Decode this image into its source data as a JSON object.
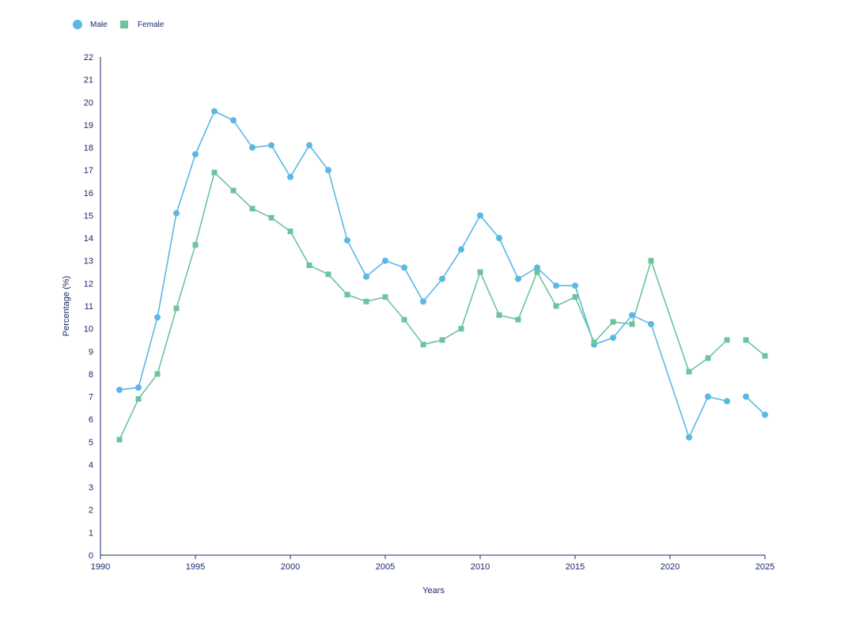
{
  "chart_data": {
    "type": "line",
    "xlabel": "Years",
    "ylabel": "Percentage (%)",
    "xlim": [
      1990,
      2025
    ],
    "ylim": [
      0,
      22
    ],
    "x_ticks": [
      1990,
      1995,
      2000,
      2005,
      2010,
      2015,
      2020,
      2025
    ],
    "y_ticks": [
      0,
      1,
      2,
      3,
      4,
      5,
      6,
      7,
      8,
      9,
      10,
      11,
      12,
      13,
      14,
      15,
      16,
      17,
      18,
      19,
      20,
      21,
      22
    ],
    "grid": false,
    "legend_position": "top-left",
    "series": [
      {
        "name": "Male",
        "color": "#5bb8e4",
        "marker": "circle",
        "points": [
          [
            1991,
            7.3
          ],
          [
            1992,
            7.4
          ],
          [
            1993,
            10.5
          ],
          [
            1994,
            15.1
          ],
          [
            1995,
            17.7
          ],
          [
            1996,
            19.6
          ],
          [
            1997,
            19.2
          ],
          [
            1998,
            18.0
          ],
          [
            1999,
            18.1
          ],
          [
            2000,
            16.7
          ],
          [
            2001,
            18.1
          ],
          [
            2002,
            17.0
          ],
          [
            2003,
            13.9
          ],
          [
            2004,
            12.3
          ],
          [
            2005,
            13.0
          ],
          [
            2006,
            12.7
          ],
          [
            2007,
            11.2
          ],
          [
            2008,
            12.2
          ],
          [
            2009,
            13.5
          ],
          [
            2010,
            15.0
          ],
          [
            2011,
            14.0
          ],
          [
            2012,
            12.2
          ],
          [
            2013,
            12.7
          ],
          [
            2014,
            11.9
          ],
          [
            2015,
            11.9
          ],
          [
            2016,
            9.3
          ],
          [
            2017,
            9.6
          ],
          [
            2018,
            10.6
          ],
          [
            2019,
            10.2
          ],
          [
            2021,
            5.2
          ],
          [
            2022,
            7.0
          ],
          [
            2023,
            6.8
          ],
          [
            2024,
            7.0
          ],
          [
            2025,
            6.2
          ]
        ],
        "segments": [
          [
            1991,
            2023
          ],
          [
            2024,
            2025
          ]
        ]
      },
      {
        "name": "Female",
        "color": "#6cc49c",
        "marker": "square",
        "points": [
          [
            1991,
            5.1
          ],
          [
            1992,
            6.9
          ],
          [
            1993,
            8.0
          ],
          [
            1994,
            10.9
          ],
          [
            1995,
            13.7
          ],
          [
            1996,
            16.9
          ],
          [
            1997,
            16.1
          ],
          [
            1998,
            15.3
          ],
          [
            1999,
            14.9
          ],
          [
            2000,
            14.3
          ],
          [
            2001,
            12.8
          ],
          [
            2002,
            12.4
          ],
          [
            2003,
            11.5
          ],
          [
            2004,
            11.2
          ],
          [
            2005,
            11.4
          ],
          [
            2006,
            10.4
          ],
          [
            2007,
            9.3
          ],
          [
            2008,
            9.5
          ],
          [
            2009,
            10.0
          ],
          [
            2010,
            12.5
          ],
          [
            2011,
            10.6
          ],
          [
            2012,
            10.4
          ],
          [
            2013,
            12.5
          ],
          [
            2014,
            11.0
          ],
          [
            2015,
            11.4
          ],
          [
            2016,
            9.4
          ],
          [
            2017,
            10.3
          ],
          [
            2018,
            10.2
          ],
          [
            2019,
            13.0
          ],
          [
            2021,
            8.1
          ],
          [
            2022,
            8.7
          ],
          [
            2023,
            9.5
          ],
          [
            2024,
            9.5
          ],
          [
            2025,
            8.8
          ]
        ],
        "segments": [
          [
            1991,
            2023
          ],
          [
            2024,
            2025
          ]
        ]
      }
    ]
  }
}
